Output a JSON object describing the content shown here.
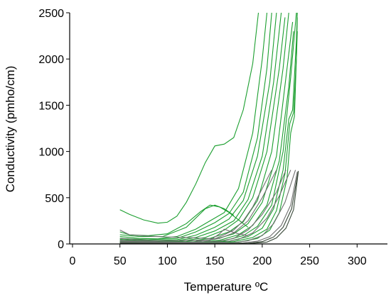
{
  "chart_data": {
    "type": "line",
    "title": "",
    "xlabel": "Temperature ºC",
    "ylabel": "Conductivity (pmho/cm)",
    "xlim": [
      -3,
      332
    ],
    "ylim": [
      0,
      2500
    ],
    "xticks": [
      0,
      50,
      100,
      150,
      200,
      250,
      300
    ],
    "yticks": [
      0,
      500,
      1000,
      1500,
      2000,
      2500
    ],
    "grid": false,
    "legend": "none",
    "colors": {
      "green": "#1a9e2e",
      "gray": "#6f6f6f",
      "dark": "#3b4a3b"
    },
    "series": [
      {
        "color": "green",
        "points": [
          [
            50,
            370
          ],
          [
            60,
            320
          ],
          [
            75,
            260
          ],
          [
            90,
            225
          ],
          [
            100,
            235
          ],
          [
            110,
            300
          ],
          [
            120,
            450
          ],
          [
            130,
            650
          ],
          [
            140,
            880
          ],
          [
            150,
            1060
          ],
          [
            160,
            1080
          ],
          [
            170,
            1150
          ],
          [
            180,
            1450
          ],
          [
            190,
            1950
          ],
          [
            196,
            2500
          ]
        ]
      },
      {
        "color": "green",
        "points": [
          [
            50,
            80
          ],
          [
            70,
            60
          ],
          [
            90,
            55
          ],
          [
            110,
            80
          ],
          [
            130,
            160
          ],
          [
            145,
            250
          ],
          [
            160,
            340
          ],
          [
            175,
            600
          ],
          [
            190,
            1200
          ],
          [
            200,
            2000
          ],
          [
            205,
            2500
          ]
        ]
      },
      {
        "color": "green",
        "points": [
          [
            50,
            60
          ],
          [
            80,
            45
          ],
          [
            110,
            60
          ],
          [
            130,
            130
          ],
          [
            150,
            230
          ],
          [
            165,
            330
          ],
          [
            180,
            560
          ],
          [
            195,
            1150
          ],
          [
            205,
            1900
          ],
          [
            210,
            2500
          ]
        ]
      },
      {
        "color": "green",
        "points": [
          [
            50,
            50
          ],
          [
            80,
            35
          ],
          [
            110,
            45
          ],
          [
            130,
            95
          ],
          [
            150,
            180
          ],
          [
            165,
            270
          ],
          [
            180,
            470
          ],
          [
            195,
            950
          ],
          [
            208,
            1750
          ],
          [
            215,
            2500
          ]
        ]
      },
      {
        "color": "green",
        "points": [
          [
            50,
            40
          ],
          [
            80,
            28
          ],
          [
            110,
            35
          ],
          [
            130,
            70
          ],
          [
            150,
            140
          ],
          [
            170,
            250
          ],
          [
            185,
            480
          ],
          [
            200,
            950
          ],
          [
            212,
            1750
          ],
          [
            220,
            2500
          ]
        ]
      },
      {
        "color": "green",
        "points": [
          [
            50,
            30
          ],
          [
            85,
            22
          ],
          [
            115,
            30
          ],
          [
            140,
            70
          ],
          [
            160,
            150
          ],
          [
            175,
            260
          ],
          [
            190,
            500
          ],
          [
            205,
            1000
          ],
          [
            218,
            1900
          ],
          [
            224,
            2450
          ]
        ]
      },
      {
        "color": "green",
        "points": [
          [
            50,
            25
          ],
          [
            90,
            18
          ],
          [
            120,
            25
          ],
          [
            145,
            60
          ],
          [
            165,
            130
          ],
          [
            180,
            240
          ],
          [
            195,
            470
          ],
          [
            210,
            1000
          ],
          [
            222,
            1900
          ],
          [
            228,
            2500
          ]
        ]
      },
      {
        "color": "green",
        "points": [
          [
            50,
            20
          ],
          [
            90,
            14
          ],
          [
            125,
            20
          ],
          [
            150,
            50
          ],
          [
            170,
            110
          ],
          [
            185,
            220
          ],
          [
            200,
            450
          ],
          [
            215,
            950
          ],
          [
            225,
            1800
          ],
          [
            232,
            2400
          ]
        ]
      },
      {
        "color": "green",
        "points": [
          [
            50,
            18
          ],
          [
            95,
            10
          ],
          [
            130,
            16
          ],
          [
            155,
            40
          ],
          [
            175,
            100
          ],
          [
            190,
            200
          ],
          [
            205,
            420
          ],
          [
            218,
            900
          ],
          [
            228,
            1700
          ],
          [
            233,
            2300
          ]
        ]
      },
      {
        "color": "green",
        "points": [
          [
            50,
            15
          ],
          [
            100,
            8
          ],
          [
            135,
            14
          ],
          [
            160,
            35
          ],
          [
            180,
            90
          ],
          [
            195,
            190
          ],
          [
            210,
            420
          ],
          [
            222,
            1000
          ],
          [
            230,
            1800
          ],
          [
            236,
            2500
          ]
        ]
      },
      {
        "color": "green",
        "points": [
          [
            50,
            12
          ],
          [
            100,
            6
          ],
          [
            140,
            12
          ],
          [
            165,
            30
          ],
          [
            185,
            80
          ],
          [
            200,
            170
          ],
          [
            212,
            380
          ],
          [
            222,
            800
          ],
          [
            228,
            1350
          ],
          [
            232,
            1450
          ],
          [
            236,
            2200
          ],
          [
            237,
            2500
          ]
        ]
      },
      {
        "color": "green",
        "points": [
          [
            50,
            10
          ],
          [
            105,
            5
          ],
          [
            145,
            10
          ],
          [
            170,
            25
          ],
          [
            190,
            70
          ],
          [
            205,
            160
          ],
          [
            215,
            360
          ],
          [
            224,
            760
          ],
          [
            229,
            1300
          ],
          [
            233,
            1420
          ],
          [
            236,
            2000
          ],
          [
            237,
            2450
          ]
        ]
      },
      {
        "color": "green",
        "points": [
          [
            50,
            8
          ],
          [
            110,
            4
          ],
          [
            150,
            8
          ],
          [
            175,
            20
          ],
          [
            195,
            60
          ],
          [
            208,
            150
          ],
          [
            218,
            340
          ],
          [
            226,
            700
          ],
          [
            230,
            1200
          ],
          [
            234,
            1380
          ],
          [
            237,
            2300
          ]
        ]
      },
      {
        "color": "green",
        "points": [
          [
            50,
            130
          ],
          [
            60,
            100
          ],
          [
            80,
            90
          ],
          [
            100,
            110
          ],
          [
            120,
            220
          ],
          [
            135,
            350
          ],
          [
            145,
            420
          ],
          [
            155,
            400
          ],
          [
            165,
            340
          ],
          [
            175,
            260
          ],
          [
            185,
            180
          ]
        ]
      },
      {
        "color": "green",
        "points": [
          [
            50,
            100
          ],
          [
            70,
            80
          ],
          [
            95,
            80
          ],
          [
            120,
            180
          ],
          [
            140,
            380
          ],
          [
            150,
            420
          ],
          [
            160,
            380
          ],
          [
            170,
            310
          ]
        ]
      },
      {
        "color": "gray",
        "points": [
          [
            50,
            150
          ],
          [
            60,
            100
          ],
          [
            80,
            85
          ],
          [
            100,
            75
          ],
          [
            120,
            70
          ],
          [
            140,
            60
          ],
          [
            150,
            55
          ],
          [
            160,
            100
          ],
          [
            170,
            150
          ],
          [
            180,
            250
          ],
          [
            190,
            400
          ],
          [
            200,
            600
          ],
          [
            210,
            800
          ]
        ]
      },
      {
        "color": "gray",
        "points": [
          [
            50,
            60
          ],
          [
            80,
            40
          ],
          [
            110,
            35
          ],
          [
            140,
            40
          ],
          [
            155,
            60
          ],
          [
            170,
            120
          ],
          [
            185,
            250
          ],
          [
            200,
            500
          ],
          [
            215,
            800
          ]
        ]
      },
      {
        "color": "gray",
        "points": [
          [
            50,
            40
          ],
          [
            90,
            25
          ],
          [
            130,
            20
          ],
          [
            155,
            30
          ],
          [
            170,
            60
          ],
          [
            185,
            150
          ],
          [
            200,
            320
          ],
          [
            215,
            560
          ],
          [
            225,
            800
          ]
        ]
      },
      {
        "color": "gray",
        "points": [
          [
            50,
            30
          ],
          [
            100,
            15
          ],
          [
            140,
            12
          ],
          [
            160,
            20
          ],
          [
            175,
            50
          ],
          [
            190,
            120
          ],
          [
            205,
            280
          ],
          [
            218,
            520
          ],
          [
            230,
            800
          ]
        ]
      },
      {
        "color": "gray",
        "points": [
          [
            50,
            20
          ],
          [
            110,
            8
          ],
          [
            150,
            8
          ],
          [
            170,
            15
          ],
          [
            185,
            35
          ],
          [
            200,
            90
          ],
          [
            212,
            220
          ],
          [
            224,
            450
          ],
          [
            235,
            800
          ]
        ]
      },
      {
        "color": "gray",
        "points": [
          [
            50,
            15
          ],
          [
            120,
            5
          ],
          [
            160,
            5
          ],
          [
            180,
            12
          ],
          [
            195,
            30
          ],
          [
            208,
            80
          ],
          [
            220,
            200
          ],
          [
            230,
            420
          ],
          [
            237,
            780
          ]
        ]
      },
      {
        "color": "dark",
        "points": [
          [
            50,
            10
          ],
          [
            120,
            3
          ],
          [
            165,
            3
          ],
          [
            185,
            8
          ],
          [
            200,
            25
          ],
          [
            212,
            75
          ],
          [
            222,
            180
          ],
          [
            231,
            380
          ],
          [
            238,
            790
          ]
        ]
      },
      {
        "color": "dark",
        "points": [
          [
            50,
            8
          ],
          [
            125,
            2
          ],
          [
            170,
            2
          ],
          [
            190,
            6
          ],
          [
            205,
            20
          ],
          [
            215,
            65
          ],
          [
            225,
            170
          ],
          [
            233,
            370
          ],
          [
            238,
            780
          ]
        ]
      },
      {
        "color": "gray",
        "points": [
          [
            130,
            30
          ],
          [
            145,
            40
          ],
          [
            155,
            110
          ],
          [
            160,
            160
          ],
          [
            165,
            140
          ],
          [
            175,
            110
          ],
          [
            185,
            90
          ]
        ]
      }
    ]
  }
}
